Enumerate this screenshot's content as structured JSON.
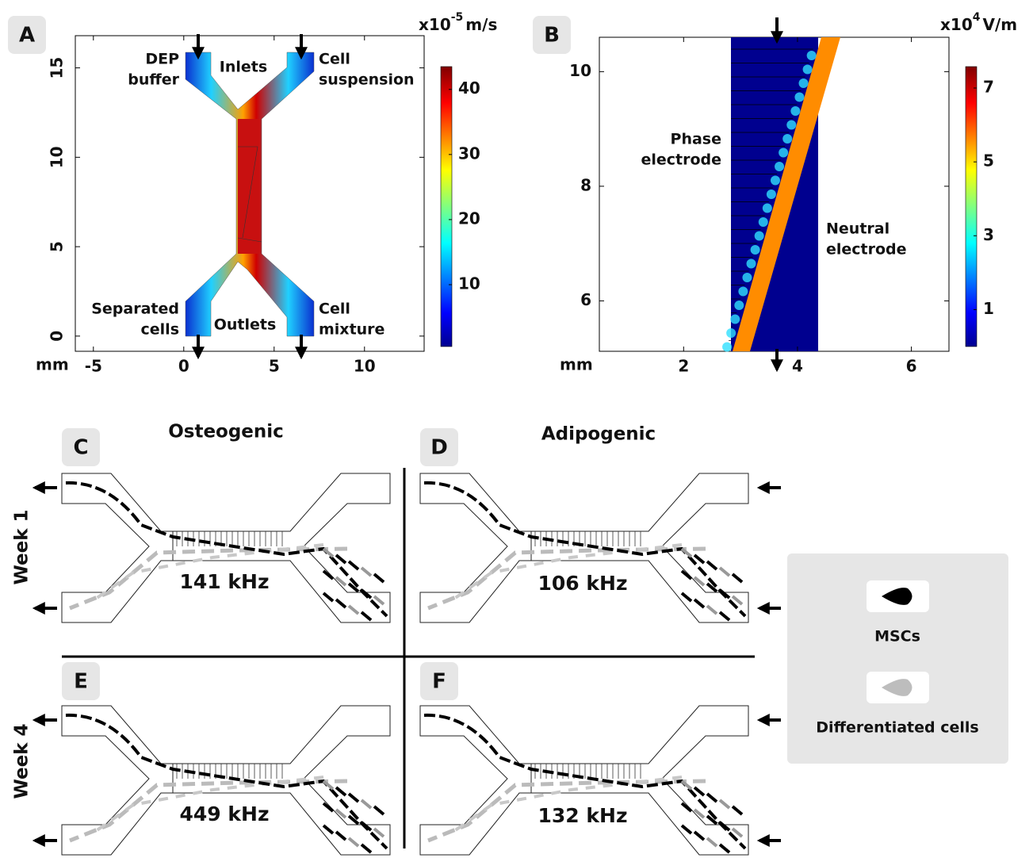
{
  "panel_a": {
    "label": "A",
    "x_axis": {
      "unit": "mm",
      "lim": [
        -6,
        13.3
      ],
      "ticks": [
        -5,
        0,
        5,
        10
      ]
    },
    "y_axis": {
      "lim": [
        -0.85,
        16.8
      ],
      "ticks": [
        0,
        5,
        10,
        15
      ]
    },
    "colorbar": {
      "unit": {
        "base": "x10",
        "exponent": "-5",
        "rest": "m/s"
      },
      "lim": [
        0.5,
        43.5
      ],
      "ticks": [
        10,
        20,
        30,
        40
      ]
    },
    "annotations": {
      "dep_buffer": [
        "DEP",
        "buffer"
      ],
      "inlets": "Inlets",
      "cell_suspension": [
        "Cell",
        "suspension"
      ],
      "separated_cells": [
        "Separated",
        "cells"
      ],
      "outlets": "Outlets",
      "cell_mixture": [
        "Cell",
        "mixture"
      ]
    }
  },
  "panel_b": {
    "label": "B",
    "x_axis": {
      "unit": "mm",
      "lim": [
        0.52,
        6.66
      ],
      "ticks": [
        2,
        4,
        6
      ]
    },
    "y_axis": {
      "lim": [
        5.12,
        10.6
      ],
      "ticks": [
        6,
        8,
        10
      ]
    },
    "colorbar": {
      "unit": {
        "base": "x10",
        "exponent": "4",
        "rest": "V/m"
      },
      "lim": [
        0,
        7.58
      ],
      "ticks": [
        1,
        3,
        5,
        7
      ]
    },
    "annotations": {
      "phase_electrode": [
        "Phase",
        "electrode"
      ],
      "neutral_electrode": [
        "Neutral",
        "electrode"
      ]
    }
  },
  "columns": [
    "Osteogenic",
    "Adipogenic"
  ],
  "rows": [
    "Week 1",
    "Week 4"
  ],
  "panels": [
    {
      "label": "C",
      "frequency": "141 kHz"
    },
    {
      "label": "D",
      "frequency": "106 kHz"
    },
    {
      "label": "E",
      "frequency": "449 kHz"
    },
    {
      "label": "F",
      "frequency": "132 kHz"
    }
  ],
  "legend": {
    "items": [
      "MSCs",
      "Differentiated cells"
    ]
  }
}
